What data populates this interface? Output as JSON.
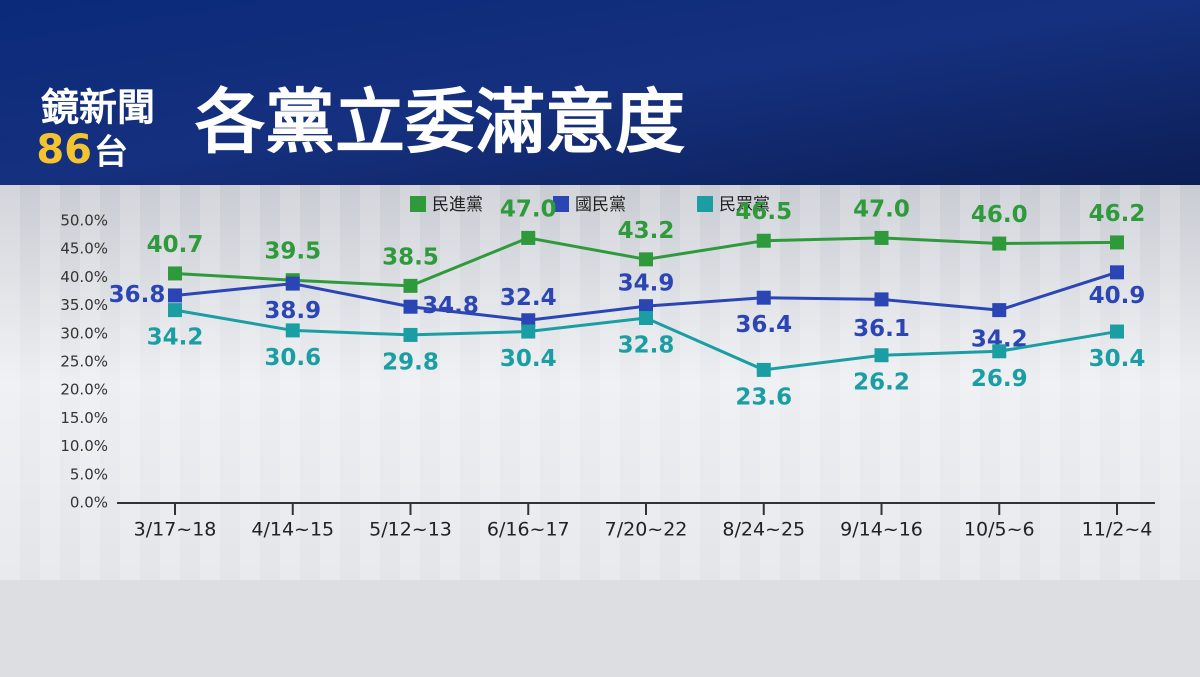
{
  "header": {
    "brand": "鏡新聞",
    "channel_number": "86",
    "channel_suffix": "台"
  },
  "chart_data": {
    "type": "line",
    "title": "各黨立委滿意度",
    "categories": [
      "3/17~18",
      "4/14~15",
      "5/12~13",
      "6/16~17",
      "7/20~22",
      "8/24~25",
      "9/14~16",
      "10/5~6",
      "11/2~4"
    ],
    "series": [
      {
        "name": "民進黨",
        "color": "#2f9a3b",
        "values": [
          40.7,
          39.5,
          38.5,
          47.0,
          43.2,
          46.5,
          47.0,
          46.0,
          46.2
        ],
        "value_labels": [
          "40.7",
          "39.5",
          "38.5",
          "47.0",
          "43.2",
          "46.5",
          "47.0",
          "46.0",
          "46.2"
        ]
      },
      {
        "name": "國民黨",
        "color": "#2b46b4",
        "values": [
          36.8,
          38.9,
          34.8,
          32.4,
          34.9,
          36.4,
          36.1,
          34.2,
          40.9
        ],
        "value_labels": [
          "36.8",
          "38.9",
          "34.8",
          "32.4",
          "34.9",
          "36.4",
          "36.1",
          "34.2",
          "40.9"
        ]
      },
      {
        "name": "民眾黨",
        "color": "#1b9ea3",
        "values": [
          34.2,
          30.6,
          29.8,
          30.4,
          32.8,
          23.6,
          26.2,
          26.9,
          30.4
        ],
        "value_labels": [
          "34.2",
          "30.6",
          "29.8",
          "30.4",
          "32.8",
          "23.6",
          "26.2",
          "26.9",
          "30.4"
        ]
      }
    ],
    "ylim": [
      0,
      50
    ],
    "yticks": [
      {
        "value": 0,
        "label": "0.0%"
      },
      {
        "value": 5,
        "label": "5.0%"
      },
      {
        "value": 10,
        "label": "10.0%"
      },
      {
        "value": 15,
        "label": "15.0%"
      },
      {
        "value": 20,
        "label": "20.0%"
      },
      {
        "value": 25,
        "label": "25.0%"
      },
      {
        "value": 30,
        "label": "30.0%"
      },
      {
        "value": 35,
        "label": "35.0%"
      },
      {
        "value": 40,
        "label": "40.0%"
      },
      {
        "value": 45,
        "label": "45.0%"
      },
      {
        "value": 50,
        "label": "50.0%"
      }
    ],
    "grid": false
  }
}
